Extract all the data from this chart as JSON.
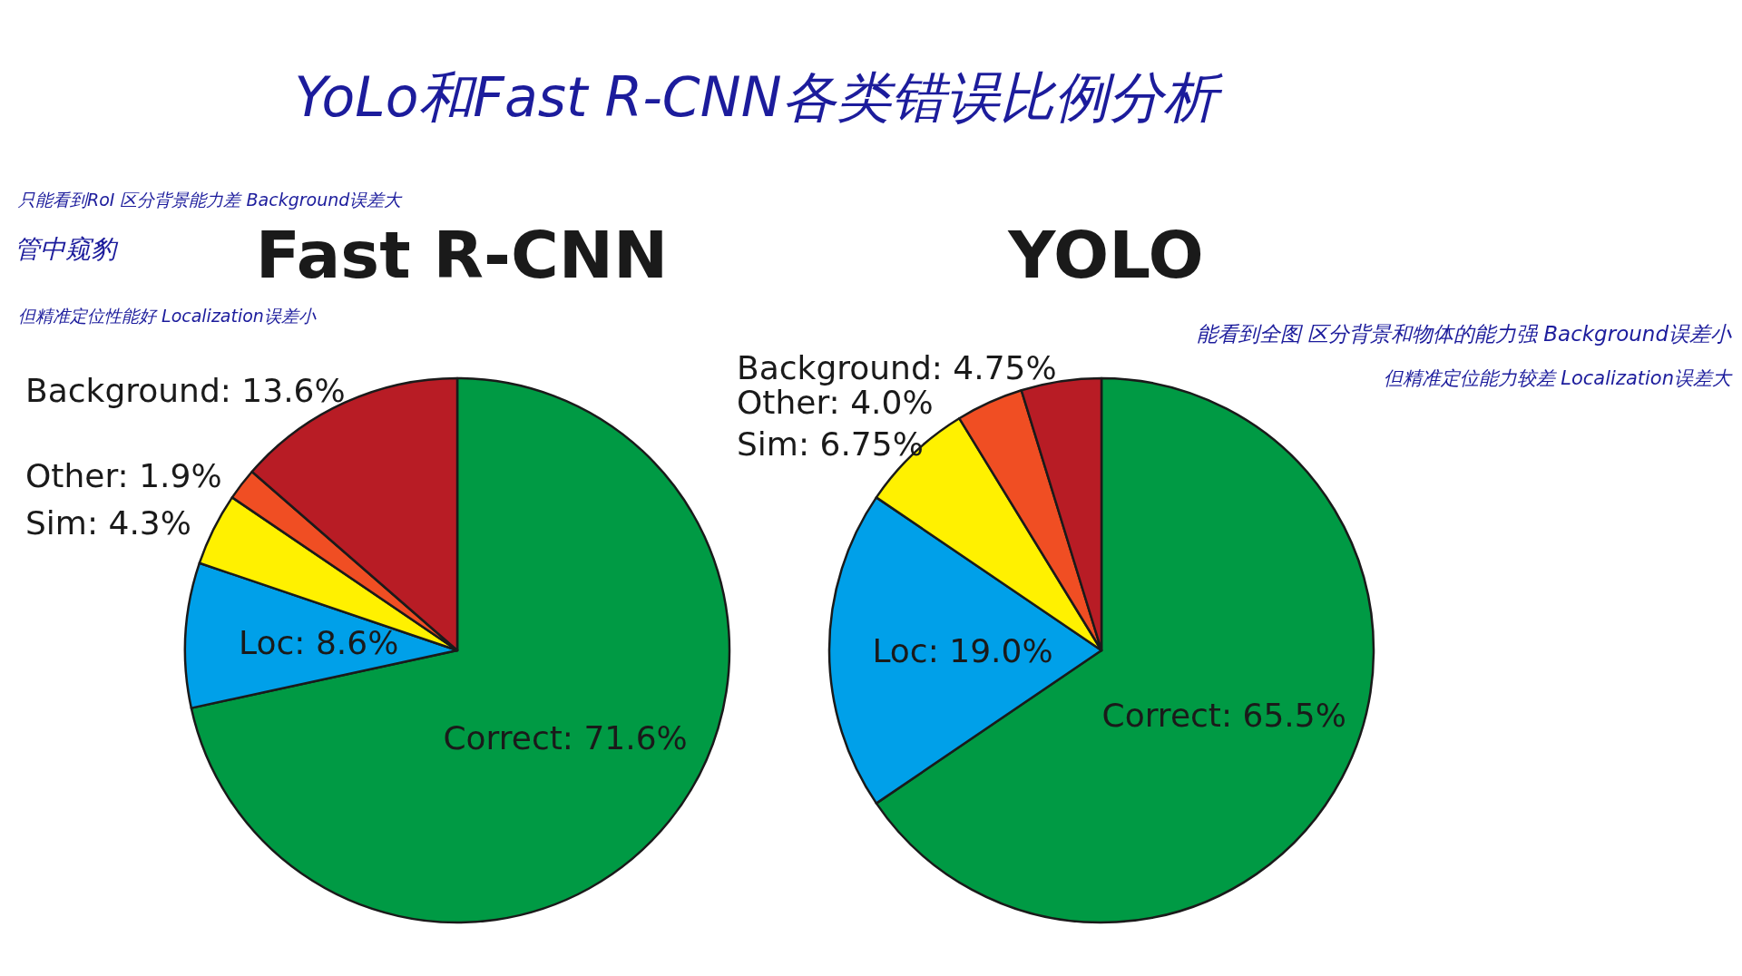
{
  "chart_data": [
    {
      "type": "other",
      "title": "YoLo和Fast R-CNN各类错误比例分析"
    },
    {
      "type": "pie",
      "title": "Fast R-CNN",
      "categories": [
        "Correct",
        "Loc",
        "Sim",
        "Other",
        "Background"
      ],
      "values": [
        71.6,
        8.6,
        4.3,
        1.9,
        13.6
      ],
      "value_labels": [
        "71.6%",
        "8.6%",
        "4.3%",
        "1.9%",
        "13.6%"
      ],
      "colors": [
        "#009a44",
        "#00a0e9",
        "#fff100",
        "#f04e23",
        "#b81c25"
      ],
      "annotations": [
        "只能看到RoI 区分背景能力差 Background误差大",
        "管中窥豹",
        "但精准定位性能好 Localization误差小"
      ]
    },
    {
      "type": "pie",
      "title": "YOLO",
      "categories": [
        "Correct",
        "Loc",
        "Sim",
        "Other",
        "Background"
      ],
      "values": [
        65.5,
        19.0,
        6.75,
        4.0,
        4.75
      ],
      "value_labels": [
        "65.5%",
        "19.0%",
        "6.75%",
        "4.0%",
        "4.75%"
      ],
      "colors": [
        "#009a44",
        "#00a0e9",
        "#fff100",
        "#f04e23",
        "#b81c25"
      ],
      "annotations": [
        "能看到全图 区分背景和物体的能力强 Background误差小",
        "但精准定位能力较差 Localization误差大"
      ]
    }
  ]
}
